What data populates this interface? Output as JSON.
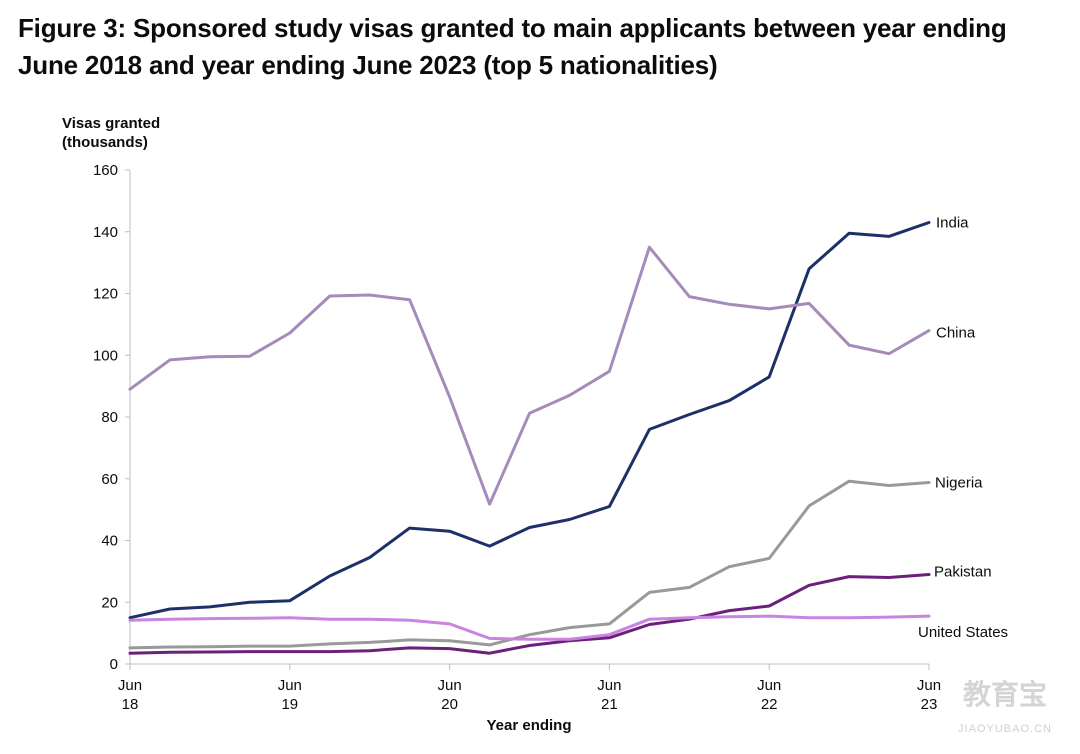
{
  "figure_title": "Figure 3: Sponsored study visas granted to main applicants between year ending June 2018 and year ending June 2023 (top 5 nationalities)",
  "watermark": {
    "logo_text": "教育宝",
    "domain": "JIAOYUBAO.CN"
  },
  "chart_data": {
    "type": "line",
    "title": "Figure 3: Sponsored study visas granted to main applicants between year ending June 2018 and year ending June 2023 (top 5 nationalities)",
    "ylabel_lines": [
      "Visas granted",
      "(thousands)"
    ],
    "xlabel": "Year ending",
    "ylim": [
      0,
      160
    ],
    "yticks": [
      0,
      20,
      40,
      60,
      80,
      100,
      120,
      140,
      160
    ],
    "x_count": 21,
    "xticks": [
      {
        "index": 0,
        "lines": [
          "Jun",
          "18"
        ]
      },
      {
        "index": 4,
        "lines": [
          "Jun",
          "19"
        ]
      },
      {
        "index": 8,
        "lines": [
          "Jun",
          "20"
        ]
      },
      {
        "index": 12,
        "lines": [
          "Jun",
          "21"
        ]
      },
      {
        "index": 16,
        "lines": [
          "Jun",
          "22"
        ]
      },
      {
        "index": 20,
        "lines": [
          "Jun",
          "23"
        ]
      }
    ],
    "grid": false,
    "legend": "direct labels at right end of each line",
    "series": [
      {
        "name": "India",
        "color": "#1d3068",
        "values": [
          15,
          17.8,
          18.5,
          20,
          20.5,
          28.5,
          34.5,
          44,
          43,
          38.2,
          44.2,
          46.8,
          51,
          76,
          80.8,
          85.3,
          93,
          128,
          139.5,
          138.5,
          143
        ]
      },
      {
        "name": "China",
        "color": "#a58bb9",
        "values": [
          89,
          98.5,
          99.5,
          99.7,
          107.2,
          119.2,
          119.5,
          118,
          86.5,
          51.8,
          81.2,
          87,
          94.8,
          135,
          119,
          116.5,
          115,
          116.8,
          103.3,
          100.5,
          108
        ]
      },
      {
        "name": "Nigeria",
        "color": "#999999",
        "values": [
          5.2,
          5.5,
          5.6,
          5.8,
          5.8,
          6.5,
          7,
          7.8,
          7.5,
          6.2,
          9.5,
          11.8,
          13,
          23.2,
          24.8,
          31.5,
          34.2,
          51.2,
          59.2,
          57.8,
          58.8
        ]
      },
      {
        "name": "Pakistan",
        "color": "#6b2079",
        "values": [
          3.5,
          3.8,
          3.9,
          4,
          4,
          4,
          4.3,
          5.2,
          5,
          3.5,
          6,
          7.5,
          8.5,
          12.8,
          14.5,
          17.3,
          18.8,
          25.5,
          28.3,
          28,
          29
        ]
      },
      {
        "name": "United States",
        "color": "#c884e0",
        "values": [
          14.2,
          14.5,
          14.7,
          14.8,
          15,
          14.5,
          14.5,
          14.2,
          13,
          8.3,
          8,
          8,
          9.5,
          14.5,
          15,
          15.3,
          15.5,
          15,
          15,
          15.2,
          15.5
        ]
      }
    ]
  }
}
